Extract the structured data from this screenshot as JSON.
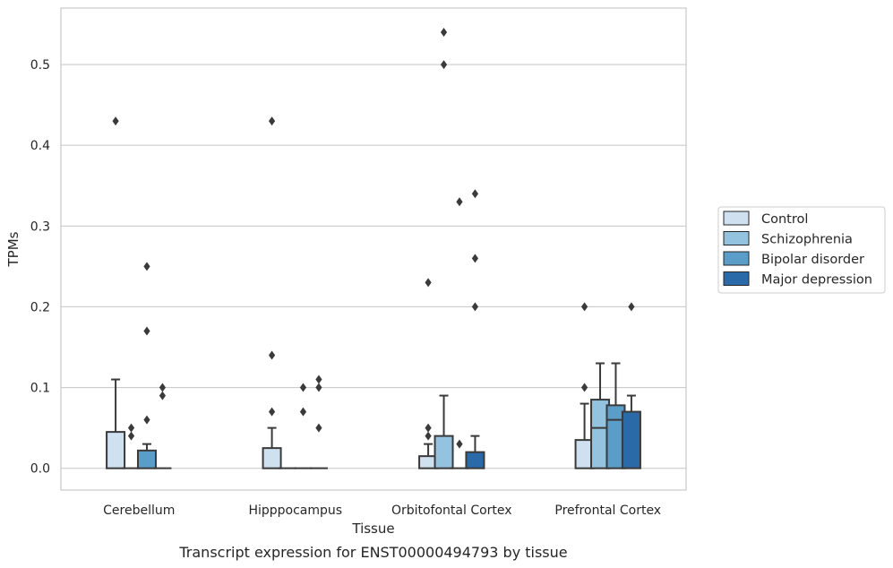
{
  "caption": "Transcript expression for ENST00000494793 by tissue",
  "chart_data": {
    "type": "box",
    "xlabel": "Tissue",
    "ylabel": "TPMs",
    "ylim": [
      -0.027,
      0.57
    ],
    "yticks": [
      0.0,
      0.1,
      0.2,
      0.3,
      0.4,
      0.5
    ],
    "ytick_labels": [
      "0.0",
      "0.1",
      "0.2",
      "0.3",
      "0.4",
      "0.5"
    ],
    "grid": "horizontal",
    "legend_position": "right",
    "categories": [
      "Cerebellum",
      "Hipppocampus",
      "Orbitofontal Cortex",
      "Prefrontal Cortex"
    ],
    "series": [
      {
        "name": "Control",
        "color": "#cfe0f1",
        "boxes": [
          {
            "q1": 0,
            "median": 0,
            "q3": 0.045,
            "whisker_low": 0,
            "whisker_high": 0.11,
            "outliers": [
              0.43
            ]
          },
          {
            "q1": 0,
            "median": 0,
            "q3": 0.025,
            "whisker_low": 0,
            "whisker_high": 0.05,
            "outliers": [
              0.07,
              0.14,
              0.43
            ]
          },
          {
            "q1": 0,
            "median": 0,
            "q3": 0.015,
            "whisker_low": 0,
            "whisker_high": 0.03,
            "outliers": [
              0.04,
              0.05,
              0.23
            ]
          },
          {
            "q1": 0,
            "median": 0,
            "q3": 0.035,
            "whisker_low": 0,
            "whisker_high": 0.08,
            "outliers": [
              0.1,
              0.2
            ]
          }
        ]
      },
      {
        "name": "Schizophrenia",
        "color": "#93c3df",
        "boxes": [
          {
            "q1": 0,
            "median": 0,
            "q3": 0,
            "whisker_low": 0,
            "whisker_high": 0,
            "outliers": [
              0.04,
              0.05
            ]
          },
          {
            "q1": 0,
            "median": 0,
            "q3": 0,
            "whisker_low": 0,
            "whisker_high": 0,
            "outliers": []
          },
          {
            "q1": 0,
            "median": 0,
            "q3": 0.04,
            "whisker_low": 0,
            "whisker_high": 0.09,
            "outliers": [
              0.5,
              0.54
            ]
          },
          {
            "q1": 0,
            "median": 0.05,
            "q3": 0.085,
            "whisker_low": 0,
            "whisker_high": 0.13,
            "outliers": []
          }
        ]
      },
      {
        "name": "Bipolar disorder",
        "color": "#5a9dc9",
        "boxes": [
          {
            "q1": 0,
            "median": 0,
            "q3": 0.022,
            "whisker_low": 0,
            "whisker_high": 0.03,
            "outliers": [
              0.06,
              0.17,
              0.25
            ]
          },
          {
            "q1": 0,
            "median": 0,
            "q3": 0,
            "whisker_low": 0,
            "whisker_high": 0,
            "outliers": [
              0.07,
              0.1
            ]
          },
          {
            "q1": 0,
            "median": 0,
            "q3": 0,
            "whisker_low": 0,
            "whisker_high": 0,
            "outliers": [
              0.03,
              0.33
            ]
          },
          {
            "q1": 0,
            "median": 0.06,
            "q3": 0.078,
            "whisker_low": 0,
            "whisker_high": 0.13,
            "outliers": []
          }
        ]
      },
      {
        "name": "Major depression",
        "color": "#2b6aa8",
        "boxes": [
          {
            "q1": 0,
            "median": 0,
            "q3": 0,
            "whisker_low": 0,
            "whisker_high": 0,
            "outliers": [
              0.09,
              0.1
            ]
          },
          {
            "q1": 0,
            "median": 0,
            "q3": 0,
            "whisker_low": 0,
            "whisker_high": 0,
            "outliers": [
              0.05,
              0.1,
              0.11
            ]
          },
          {
            "q1": 0,
            "median": 0,
            "q3": 0.02,
            "whisker_low": 0,
            "whisker_high": 0.04,
            "outliers": [
              0.2,
              0.26,
              0.34
            ]
          },
          {
            "q1": 0,
            "median": 0,
            "q3": 0.07,
            "whisker_low": 0,
            "whisker_high": 0.09,
            "outliers": [
              0.2
            ]
          }
        ]
      }
    ]
  }
}
